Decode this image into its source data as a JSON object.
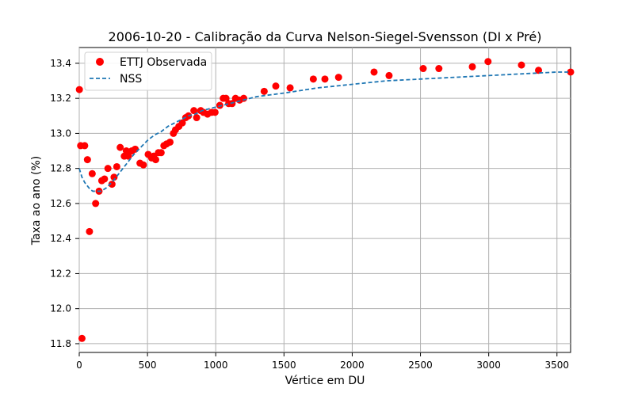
{
  "chart_data": {
    "type": "scatter",
    "title": "2006-10-20 - Calibração da Curva Nelson-Siegel-Svensson (DI x Pré)",
    "xlabel": "Vértice em DU",
    "ylabel": "Taxa ao ano (%)",
    "xlim": [
      0,
      3600
    ],
    "ylim": [
      11.75,
      13.49
    ],
    "x_ticks": [
      0,
      500,
      1000,
      1500,
      2000,
      2500,
      3000,
      3500
    ],
    "y_ticks": [
      11.8,
      12.0,
      12.2,
      12.4,
      12.6,
      12.8,
      13.0,
      13.2,
      13.4
    ],
    "x_tick_labels": [
      "0",
      "500",
      "1000",
      "1500",
      "2000",
      "2500",
      "3000",
      "3500"
    ],
    "y_tick_labels": [
      "11.8",
      "12.0",
      "12.2",
      "12.4",
      "12.6",
      "12.8",
      "13.0",
      "13.2",
      "13.4"
    ],
    "grid": true,
    "legend_position": "top-left",
    "series": [
      {
        "name": "ETTJ Observada",
        "type": "scatter",
        "color": "#ff0000",
        "x": [
          1,
          10,
          20,
          40,
          60,
          75,
          95,
          120,
          145,
          165,
          185,
          210,
          240,
          255,
          275,
          300,
          330,
          345,
          360,
          385,
          410,
          445,
          470,
          505,
          530,
          545,
          560,
          580,
          600,
          620,
          640,
          665,
          690,
          705,
          730,
          755,
          780,
          800,
          840,
          860,
          890,
          910,
          940,
          970,
          995,
          1030,
          1055,
          1075,
          1095,
          1120,
          1145,
          1175,
          1205,
          1355,
          1440,
          1545,
          1715,
          1800,
          1900,
          2160,
          2270,
          2520,
          2635,
          2880,
          2995,
          3240,
          3365,
          3600
        ],
        "y": [
          13.25,
          12.93,
          11.83,
          12.93,
          12.85,
          12.44,
          12.77,
          12.6,
          12.67,
          12.73,
          12.74,
          12.8,
          12.71,
          12.75,
          12.81,
          12.92,
          12.87,
          12.9,
          12.87,
          12.9,
          12.91,
          12.83,
          12.82,
          12.88,
          12.86,
          12.87,
          12.85,
          12.89,
          12.89,
          12.93,
          12.94,
          12.95,
          13.0,
          13.02,
          13.04,
          13.06,
          13.09,
          13.1,
          13.13,
          13.09,
          13.13,
          13.12,
          13.11,
          13.12,
          13.12,
          13.16,
          13.2,
          13.2,
          13.17,
          13.17,
          13.2,
          13.19,
          13.2,
          13.24,
          13.27,
          13.26,
          13.31,
          13.31,
          13.32,
          13.35,
          13.33,
          13.37,
          13.37,
          13.38,
          13.41,
          13.39,
          13.36,
          13.35
        ]
      },
      {
        "name": "NSS",
        "type": "line",
        "style": "dashed",
        "color": "#1f77b4",
        "x": [
          0,
          20,
          40,
          60,
          80,
          100,
          120,
          140,
          160,
          180,
          200,
          250,
          300,
          350,
          400,
          450,
          500,
          550,
          600,
          650,
          700,
          750,
          800,
          850,
          900,
          950,
          1000,
          1100,
          1200,
          1300,
          1400,
          1500,
          1750,
          2000,
          2250,
          2500,
          2750,
          3000,
          3250,
          3500,
          3600
        ],
        "y": [
          12.8,
          12.75,
          12.72,
          12.7,
          12.68,
          12.67,
          12.67,
          12.67,
          12.67,
          12.68,
          12.69,
          12.73,
          12.78,
          12.83,
          12.88,
          12.92,
          12.96,
          12.99,
          13.01,
          13.04,
          13.06,
          13.08,
          13.1,
          13.11,
          13.13,
          13.14,
          13.15,
          13.17,
          13.19,
          13.21,
          13.22,
          13.23,
          13.26,
          13.28,
          13.3,
          13.31,
          13.32,
          13.33,
          13.34,
          13.35,
          13.35
        ]
      }
    ]
  }
}
